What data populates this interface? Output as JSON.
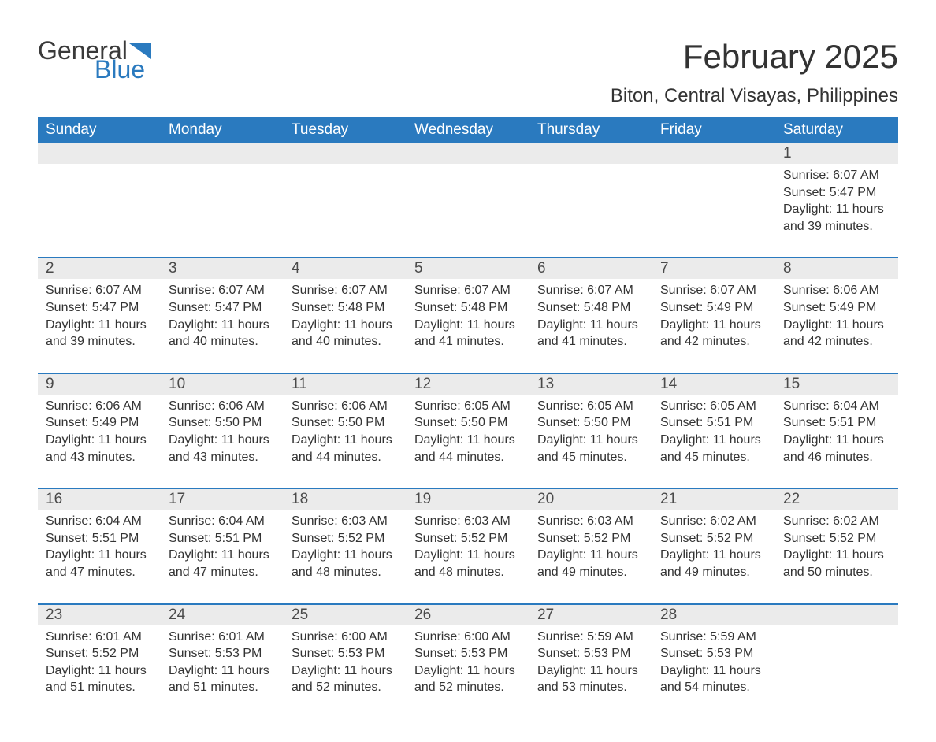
{
  "logo": {
    "general": "General",
    "blue": "Blue",
    "triangle_color": "#2a7abf"
  },
  "header": {
    "month_title": "February 2025",
    "location": "Biton, Central Visayas, Philippines"
  },
  "colors": {
    "header_bg": "#2a7abf",
    "header_text": "#ffffff",
    "daynum_bg": "#ebebeb",
    "divider": "#2a7abf",
    "body_text": "#333333",
    "background": "#ffffff"
  },
  "typography": {
    "month_title_fontsize": 42,
    "location_fontsize": 24,
    "weekday_fontsize": 19,
    "daynum_fontsize": 19,
    "cell_fontsize": 16
  },
  "weekdays": [
    "Sunday",
    "Monday",
    "Tuesday",
    "Wednesday",
    "Thursday",
    "Friday",
    "Saturday"
  ],
  "weeks": [
    {
      "days": [
        null,
        null,
        null,
        null,
        null,
        null,
        {
          "n": "1",
          "sunrise": "Sunrise: 6:07 AM",
          "sunset": "Sunset: 5:47 PM",
          "daylight": "Daylight: 11 hours and 39 minutes."
        }
      ]
    },
    {
      "days": [
        {
          "n": "2",
          "sunrise": "Sunrise: 6:07 AM",
          "sunset": "Sunset: 5:47 PM",
          "daylight": "Daylight: 11 hours and 39 minutes."
        },
        {
          "n": "3",
          "sunrise": "Sunrise: 6:07 AM",
          "sunset": "Sunset: 5:47 PM",
          "daylight": "Daylight: 11 hours and 40 minutes."
        },
        {
          "n": "4",
          "sunrise": "Sunrise: 6:07 AM",
          "sunset": "Sunset: 5:48 PM",
          "daylight": "Daylight: 11 hours and 40 minutes."
        },
        {
          "n": "5",
          "sunrise": "Sunrise: 6:07 AM",
          "sunset": "Sunset: 5:48 PM",
          "daylight": "Daylight: 11 hours and 41 minutes."
        },
        {
          "n": "6",
          "sunrise": "Sunrise: 6:07 AM",
          "sunset": "Sunset: 5:48 PM",
          "daylight": "Daylight: 11 hours and 41 minutes."
        },
        {
          "n": "7",
          "sunrise": "Sunrise: 6:07 AM",
          "sunset": "Sunset: 5:49 PM",
          "daylight": "Daylight: 11 hours and 42 minutes."
        },
        {
          "n": "8",
          "sunrise": "Sunrise: 6:06 AM",
          "sunset": "Sunset: 5:49 PM",
          "daylight": "Daylight: 11 hours and 42 minutes."
        }
      ]
    },
    {
      "days": [
        {
          "n": "9",
          "sunrise": "Sunrise: 6:06 AM",
          "sunset": "Sunset: 5:49 PM",
          "daylight": "Daylight: 11 hours and 43 minutes."
        },
        {
          "n": "10",
          "sunrise": "Sunrise: 6:06 AM",
          "sunset": "Sunset: 5:50 PM",
          "daylight": "Daylight: 11 hours and 43 minutes."
        },
        {
          "n": "11",
          "sunrise": "Sunrise: 6:06 AM",
          "sunset": "Sunset: 5:50 PM",
          "daylight": "Daylight: 11 hours and 44 minutes."
        },
        {
          "n": "12",
          "sunrise": "Sunrise: 6:05 AM",
          "sunset": "Sunset: 5:50 PM",
          "daylight": "Daylight: 11 hours and 44 minutes."
        },
        {
          "n": "13",
          "sunrise": "Sunrise: 6:05 AM",
          "sunset": "Sunset: 5:50 PM",
          "daylight": "Daylight: 11 hours and 45 minutes."
        },
        {
          "n": "14",
          "sunrise": "Sunrise: 6:05 AM",
          "sunset": "Sunset: 5:51 PM",
          "daylight": "Daylight: 11 hours and 45 minutes."
        },
        {
          "n": "15",
          "sunrise": "Sunrise: 6:04 AM",
          "sunset": "Sunset: 5:51 PM",
          "daylight": "Daylight: 11 hours and 46 minutes."
        }
      ]
    },
    {
      "days": [
        {
          "n": "16",
          "sunrise": "Sunrise: 6:04 AM",
          "sunset": "Sunset: 5:51 PM",
          "daylight": "Daylight: 11 hours and 47 minutes."
        },
        {
          "n": "17",
          "sunrise": "Sunrise: 6:04 AM",
          "sunset": "Sunset: 5:51 PM",
          "daylight": "Daylight: 11 hours and 47 minutes."
        },
        {
          "n": "18",
          "sunrise": "Sunrise: 6:03 AM",
          "sunset": "Sunset: 5:52 PM",
          "daylight": "Daylight: 11 hours and 48 minutes."
        },
        {
          "n": "19",
          "sunrise": "Sunrise: 6:03 AM",
          "sunset": "Sunset: 5:52 PM",
          "daylight": "Daylight: 11 hours and 48 minutes."
        },
        {
          "n": "20",
          "sunrise": "Sunrise: 6:03 AM",
          "sunset": "Sunset: 5:52 PM",
          "daylight": "Daylight: 11 hours and 49 minutes."
        },
        {
          "n": "21",
          "sunrise": "Sunrise: 6:02 AM",
          "sunset": "Sunset: 5:52 PM",
          "daylight": "Daylight: 11 hours and 49 minutes."
        },
        {
          "n": "22",
          "sunrise": "Sunrise: 6:02 AM",
          "sunset": "Sunset: 5:52 PM",
          "daylight": "Daylight: 11 hours and 50 minutes."
        }
      ]
    },
    {
      "days": [
        {
          "n": "23",
          "sunrise": "Sunrise: 6:01 AM",
          "sunset": "Sunset: 5:52 PM",
          "daylight": "Daylight: 11 hours and 51 minutes."
        },
        {
          "n": "24",
          "sunrise": "Sunrise: 6:01 AM",
          "sunset": "Sunset: 5:53 PM",
          "daylight": "Daylight: 11 hours and 51 minutes."
        },
        {
          "n": "25",
          "sunrise": "Sunrise: 6:00 AM",
          "sunset": "Sunset: 5:53 PM",
          "daylight": "Daylight: 11 hours and 52 minutes."
        },
        {
          "n": "26",
          "sunrise": "Sunrise: 6:00 AM",
          "sunset": "Sunset: 5:53 PM",
          "daylight": "Daylight: 11 hours and 52 minutes."
        },
        {
          "n": "27",
          "sunrise": "Sunrise: 5:59 AM",
          "sunset": "Sunset: 5:53 PM",
          "daylight": "Daylight: 11 hours and 53 minutes."
        },
        {
          "n": "28",
          "sunrise": "Sunrise: 5:59 AM",
          "sunset": "Sunset: 5:53 PM",
          "daylight": "Daylight: 11 hours and 54 minutes."
        },
        null
      ]
    }
  ]
}
